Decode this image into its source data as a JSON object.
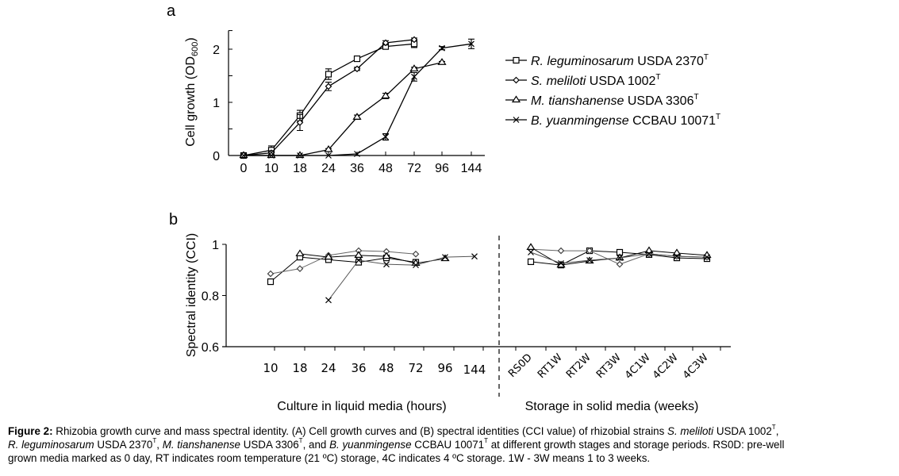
{
  "chart_data": [
    {
      "panel": "a",
      "type": "line",
      "title": "",
      "xlabel": "",
      "ylabel": "Cell growth (OD600)",
      "ylabel_main": "Cell growth (OD",
      "ylabel_sub": "600",
      "ylabel_close": ")",
      "categories": [
        "0",
        "10",
        "18",
        "24",
        "36",
        "48",
        "72",
        "96",
        "144"
      ],
      "ylim": [
        0,
        2.35
      ],
      "yticks": [
        0,
        0.5,
        1,
        1.5,
        2
      ],
      "ytick_labels": [
        "0",
        "",
        "1",
        "",
        "2"
      ],
      "grid": false,
      "legend_position": "right",
      "series": [
        {
          "name": "R. leguminosarum USDA 2370T",
          "marker": "square",
          "values": [
            0,
            0.1,
            0.75,
            1.53,
            1.82,
            2.05,
            2.1,
            null,
            null
          ],
          "errors": [
            0.02,
            0.08,
            0.1,
            0.1,
            0.05,
            0.05,
            0.07,
            null,
            null
          ]
        },
        {
          "name": "S. meliloti USDA 1002T",
          "marker": "diamond",
          "values": [
            0,
            0.05,
            0.62,
            1.3,
            1.63,
            2.12,
            2.18,
            null,
            null
          ],
          "errors": [
            0.02,
            0.04,
            0.15,
            0.08,
            0.03,
            0.04,
            0.03,
            null,
            null
          ]
        },
        {
          "name": "M. tianshanense USDA 3306T",
          "marker": "triangle",
          "values": [
            0,
            0,
            0,
            0.11,
            0.72,
            1.12,
            1.63,
            1.75,
            null
          ],
          "errors": [
            0.01,
            0.01,
            0.01,
            0.02,
            0.04,
            0.05,
            0.03,
            0.02,
            null
          ]
        },
        {
          "name": "B. yuanmingense CCBAU 10071T",
          "marker": "x",
          "values": [
            0,
            0,
            0,
            0,
            0.03,
            0.35,
            1.48,
            2.02,
            2.1
          ],
          "errors": [
            0.01,
            0.01,
            0.01,
            0.01,
            0.01,
            0.06,
            0.08,
            0.03,
            0.09
          ]
        }
      ]
    },
    {
      "panel": "b",
      "type": "line",
      "title": "",
      "ylabel": "Spectral identity (CCI)",
      "xlabel_left": "Culture  in liquid media (hours)",
      "xlabel_right": "Storage in solid media (weeks)",
      "categories_left": [
        "10",
        "18",
        "24",
        "36",
        "48",
        "72",
        "96",
        "144"
      ],
      "categories_right": [
        "RS0D",
        "RT1W",
        "RT2W",
        "RT3W",
        "4C1W",
        "4C2W",
        "4C3W"
      ],
      "ylim": [
        0.6,
        1.0
      ],
      "yticks": [
        0.6,
        0.8,
        1.0
      ],
      "ytick_labels": [
        "0.6",
        "0.8",
        "1"
      ],
      "grid": false,
      "series": [
        {
          "name": "R. leguminosarum USDA 2370T",
          "marker": "square",
          "values_left": [
            0.854,
            0.95,
            0.94,
            0.93,
            0.947,
            0.93,
            null,
            null
          ],
          "values_right": [
            0.932,
            0.919,
            0.975,
            0.969,
            0.96,
            0.947,
            0.944
          ]
        },
        {
          "name": "S. meliloti USDA 1002T",
          "marker": "diamond",
          "values_left": [
            0.885,
            0.905,
            0.957,
            0.975,
            0.972,
            0.962,
            null,
            null
          ],
          "values_right": [
            0.981,
            0.975,
            0.975,
            0.922,
            0.963,
            0.953,
            0.95
          ]
        },
        {
          "name": "M. tianshanense USDA 3306T",
          "marker": "triangle",
          "values_left": [
            null,
            0.963,
            0.95,
            0.957,
            0.953,
            0.926,
            0.944,
            null
          ],
          "values_right": [
            0.988,
            0.919,
            0.935,
            0.947,
            0.975,
            0.966,
            0.957
          ]
        },
        {
          "name": "B. yuanmingense CCBAU 10071T",
          "marker": "x",
          "values_left": [
            null,
            null,
            0.782,
            0.938,
            0.922,
            0.919,
            0.95,
            0.953
          ],
          "values_right": [
            0.969,
            0.926,
            0.938,
            0.947,
            0.963,
            0.953,
            0.95
          ]
        }
      ]
    }
  ],
  "panel_labels": {
    "a": "a",
    "b": "b"
  },
  "legend": [
    {
      "italic": "R. leguminosarum",
      "rest": " USDA 2370",
      "sup": "T"
    },
    {
      "italic": "S. meliloti",
      "rest": " USDA 1002",
      "sup": "T"
    },
    {
      "italic": "M. tianshanense",
      "rest": " USDA 3306",
      "sup": "T"
    },
    {
      "italic": "B. yuanmingense",
      "rest": " CCBAU 10071",
      "sup": "T"
    }
  ],
  "caption": {
    "label": "Figure 2:",
    "line1_a": " Rhizobia growth curve and mass spectral identity. (A) Cell growth curves and (B) spectral identities (CCI value) of rhizobial strains ",
    "line1_i1": "S. meliloti",
    "line1_b": " USDA 1002",
    "line2_i1": "R. leguminosarum",
    "line2_a": " USDA 2370",
    "line2_b": ", ",
    "line2_i2": "M. tianshanense",
    "line2_c": " USDA 3306",
    "line2_d": ", and ",
    "line2_i3": "B. yuanmingense",
    "line2_e": " CCBAU 10071",
    "line2_f": " at different growth stages and storage periods. RS0D: pre-well",
    "line3": "grown media marked as 0 day, RT indicates room temperature (21 ºC) storage, 4C indicates 4 ºC storage. 1W - 3W means 1 to 3 weeks.",
    "sup": "T",
    "comma": ","
  }
}
